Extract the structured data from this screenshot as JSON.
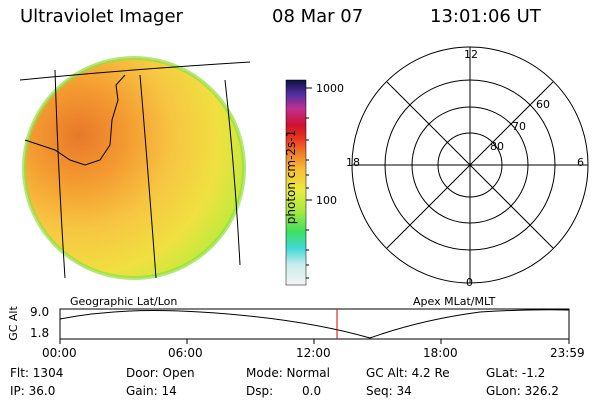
{
  "header": {
    "instrument": "Ultraviolet Imager",
    "date": "08 Mar 07",
    "time": "13:01:06 UT"
  },
  "colorbar": {
    "label": "photon cm-2s-1",
    "ticks": [
      "1000",
      "100"
    ]
  },
  "image_panel": {
    "caption": "Geographic Lat/Lon"
  },
  "polar_plot": {
    "caption": "Apex MLat/MLT",
    "mlt_labels": [
      "12",
      "18",
      "6",
      "0"
    ],
    "lat_labels": [
      "60",
      "70",
      "80"
    ]
  },
  "timeline": {
    "ylabel": "GC Alt",
    "y_ticks": [
      "9.0",
      "1.8"
    ],
    "x_ticks": [
      "00:00",
      "06:00",
      "12:00",
      "18:00",
      "23:59"
    ],
    "current_marker_time": "13:01",
    "marker_color": "#e00000"
  },
  "status": {
    "flt": "Flt: 1304",
    "ip": "IP: 36.0",
    "door": "Door: Open",
    "gain": "Gain: 14",
    "mode": "Mode: Normal",
    "dsp_label": "Dsp:",
    "dsp_value": "0.0",
    "gc_alt": "GC Alt: 4.2 Re",
    "seq": "Seq: 34",
    "glat": "GLat: -1.2",
    "glon": "GLon: 326.2"
  }
}
